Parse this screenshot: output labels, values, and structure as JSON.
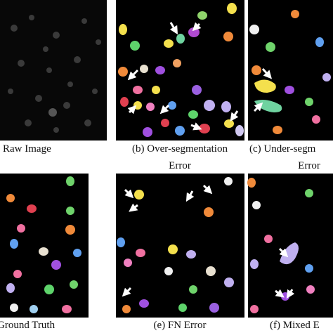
{
  "panels": [
    {
      "caption": "Raw Image"
    },
    {
      "caption": "(b) Over-segmentation",
      "caption_line2": "Error"
    },
    {
      "caption": "(c) Under-segm",
      "caption_line2": "Error"
    },
    {
      "caption": "Ground Truth"
    },
    {
      "caption": "(e) FN Error"
    },
    {
      "caption": "(f) Mixed E"
    }
  ]
}
